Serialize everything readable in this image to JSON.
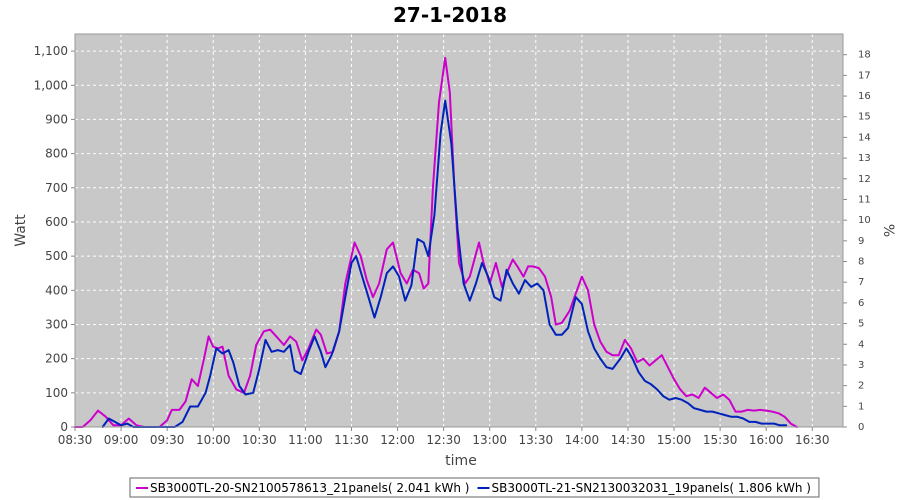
{
  "chart_data": {
    "type": "line",
    "title": "27-1-2018",
    "xlabel": "time",
    "ylabel": "Watt",
    "y2label": "%",
    "ylim": [
      0,
      1150
    ],
    "y2lim": [
      0,
      19
    ],
    "grid": true,
    "legend_position": "bottom",
    "colors": {
      "plot_background": "#c8c8c8",
      "grid": "#ffffff"
    },
    "x_ticks": [
      "08:30",
      "09:00",
      "09:30",
      "10:00",
      "10:30",
      "11:00",
      "11:30",
      "12:00",
      "12:30",
      "13:00",
      "13:30",
      "14:00",
      "14:30",
      "15:00",
      "15:30",
      "16:00",
      "16:30"
    ],
    "y_ticks": [
      "0",
      "100",
      "200",
      "300",
      "400",
      "500",
      "600",
      "700",
      "800",
      "900",
      "1,000",
      "1,100"
    ],
    "y2_ticks": [
      "0",
      "1",
      "2",
      "3",
      "4",
      "5",
      "6",
      "7",
      "8",
      "9",
      "10",
      "11",
      "12",
      "13",
      "14",
      "15",
      "16",
      "17",
      "18"
    ],
    "series": [
      {
        "name": "SB3000TL-20-SN2100578613_21panels( 2.041 kWh )",
        "color": "#cc00cc",
        "points": [
          [
            "08:30",
            0
          ],
          [
            "08:35",
            0
          ],
          [
            "08:40",
            20
          ],
          [
            "08:45",
            48
          ],
          [
            "08:50",
            30
          ],
          [
            "08:55",
            5
          ],
          [
            "09:00",
            5
          ],
          [
            "09:05",
            25
          ],
          [
            "09:10",
            5
          ],
          [
            "09:15",
            0
          ],
          [
            "09:20",
            0
          ],
          [
            "09:25",
            0
          ],
          [
            "09:30",
            20
          ],
          [
            "09:33",
            50
          ],
          [
            "09:38",
            50
          ],
          [
            "09:42",
            75
          ],
          [
            "09:46",
            140
          ],
          [
            "09:50",
            120
          ],
          [
            "09:54",
            200
          ],
          [
            "09:57",
            265
          ],
          [
            "10:00",
            235
          ],
          [
            "10:03",
            230
          ],
          [
            "10:06",
            235
          ],
          [
            "10:10",
            150
          ],
          [
            "10:15",
            110
          ],
          [
            "10:20",
            100
          ],
          [
            "10:24",
            150
          ],
          [
            "10:28",
            240
          ],
          [
            "10:33",
            280
          ],
          [
            "10:37",
            285
          ],
          [
            "10:42",
            260
          ],
          [
            "10:46",
            240
          ],
          [
            "10:50",
            265
          ],
          [
            "10:54",
            250
          ],
          [
            "10:58",
            195
          ],
          [
            "11:02",
            230
          ],
          [
            "11:07",
            285
          ],
          [
            "11:10",
            270
          ],
          [
            "11:14",
            215
          ],
          [
            "11:18",
            220
          ],
          [
            "11:22",
            280
          ],
          [
            "11:26",
            420
          ],
          [
            "11:32",
            540
          ],
          [
            "11:36",
            500
          ],
          [
            "11:40",
            430
          ],
          [
            "11:44",
            380
          ],
          [
            "11:48",
            420
          ],
          [
            "11:53",
            520
          ],
          [
            "11:57",
            540
          ],
          [
            "12:02",
            450
          ],
          [
            "12:06",
            420
          ],
          [
            "12:10",
            460
          ],
          [
            "12:14",
            450
          ],
          [
            "12:17",
            405
          ],
          [
            "12:20",
            420
          ],
          [
            "12:23",
            700
          ],
          [
            "12:27",
            950
          ],
          [
            "12:31",
            1080
          ],
          [
            "12:34",
            980
          ],
          [
            "12:37",
            700
          ],
          [
            "12:40",
            480
          ],
          [
            "12:44",
            420
          ],
          [
            "12:47",
            440
          ],
          [
            "12:50",
            490
          ],
          [
            "12:53",
            540
          ],
          [
            "12:56",
            480
          ],
          [
            "13:00",
            420
          ],
          [
            "13:04",
            480
          ],
          [
            "13:08",
            410
          ],
          [
            "13:12",
            460
          ],
          [
            "13:15",
            490
          ],
          [
            "13:18",
            470
          ],
          [
            "13:22",
            440
          ],
          [
            "13:25",
            470
          ],
          [
            "13:28",
            470
          ],
          [
            "13:32",
            465
          ],
          [
            "13:36",
            440
          ],
          [
            "13:40",
            380
          ],
          [
            "13:43",
            300
          ],
          [
            "13:47",
            305
          ],
          [
            "13:52",
            340
          ],
          [
            "13:56",
            390
          ],
          [
            "14:00",
            440
          ],
          [
            "14:04",
            400
          ],
          [
            "14:08",
            300
          ],
          [
            "14:12",
            250
          ],
          [
            "14:16",
            220
          ],
          [
            "14:20",
            210
          ],
          [
            "14:24",
            210
          ],
          [
            "14:28",
            255
          ],
          [
            "14:32",
            230
          ],
          [
            "14:36",
            190
          ],
          [
            "14:40",
            200
          ],
          [
            "14:44",
            180
          ],
          [
            "14:48",
            195
          ],
          [
            "14:52",
            210
          ],
          [
            "14:56",
            175
          ],
          [
            "15:00",
            140
          ],
          [
            "15:04",
            110
          ],
          [
            "15:08",
            90
          ],
          [
            "15:12",
            95
          ],
          [
            "15:16",
            85
          ],
          [
            "15:20",
            115
          ],
          [
            "15:24",
            100
          ],
          [
            "15:28",
            85
          ],
          [
            "15:32",
            95
          ],
          [
            "15:36",
            80
          ],
          [
            "15:40",
            45
          ],
          [
            "15:44",
            45
          ],
          [
            "15:48",
            50
          ],
          [
            "15:52",
            48
          ],
          [
            "15:56",
            50
          ],
          [
            "16:00",
            48
          ],
          [
            "16:04",
            45
          ],
          [
            "16:08",
            40
          ],
          [
            "16:12",
            30
          ],
          [
            "16:16",
            10
          ],
          [
            "16:20",
            0
          ]
        ]
      },
      {
        "name": "SB3000TL-21-SN2130032031_19panels( 1.806 kWh )",
        "color": "#0022bb",
        "points": [
          [
            "08:48",
            0
          ],
          [
            "08:52",
            25
          ],
          [
            "08:56",
            15
          ],
          [
            "09:00",
            5
          ],
          [
            "09:04",
            10
          ],
          [
            "09:08",
            0
          ],
          [
            "09:15",
            0
          ],
          [
            "09:30",
            0
          ],
          [
            "09:35",
            0
          ],
          [
            "09:40",
            15
          ],
          [
            "09:45",
            60
          ],
          [
            "09:50",
            60
          ],
          [
            "09:55",
            100
          ],
          [
            "09:58",
            150
          ],
          [
            "10:02",
            230
          ],
          [
            "10:06",
            215
          ],
          [
            "10:10",
            225
          ],
          [
            "10:13",
            190
          ],
          [
            "10:17",
            120
          ],
          [
            "10:21",
            95
          ],
          [
            "10:26",
            100
          ],
          [
            "10:30",
            170
          ],
          [
            "10:34",
            255
          ],
          [
            "10:38",
            220
          ],
          [
            "10:42",
            225
          ],
          [
            "10:46",
            220
          ],
          [
            "10:50",
            240
          ],
          [
            "10:53",
            165
          ],
          [
            "10:57",
            155
          ],
          [
            "11:02",
            220
          ],
          [
            "11:06",
            265
          ],
          [
            "11:10",
            220
          ],
          [
            "11:13",
            175
          ],
          [
            "11:17",
            210
          ],
          [
            "11:22",
            280
          ],
          [
            "11:26",
            380
          ],
          [
            "11:30",
            480
          ],
          [
            "11:33",
            500
          ],
          [
            "11:37",
            440
          ],
          [
            "11:41",
            380
          ],
          [
            "11:45",
            320
          ],
          [
            "11:49",
            380
          ],
          [
            "11:53",
            450
          ],
          [
            "11:57",
            470
          ],
          [
            "12:01",
            440
          ],
          [
            "12:05",
            370
          ],
          [
            "12:09",
            415
          ],
          [
            "12:13",
            550
          ],
          [
            "12:17",
            540
          ],
          [
            "12:20",
            500
          ],
          [
            "12:24",
            620
          ],
          [
            "12:28",
            860
          ],
          [
            "12:31",
            955
          ],
          [
            "12:35",
            830
          ],
          [
            "12:39",
            580
          ],
          [
            "12:43",
            420
          ],
          [
            "12:47",
            370
          ],
          [
            "12:51",
            420
          ],
          [
            "12:55",
            480
          ],
          [
            "12:59",
            440
          ],
          [
            "13:03",
            380
          ],
          [
            "13:07",
            370
          ],
          [
            "13:11",
            460
          ],
          [
            "13:15",
            420
          ],
          [
            "13:19",
            390
          ],
          [
            "13:23",
            430
          ],
          [
            "13:27",
            410
          ],
          [
            "13:31",
            420
          ],
          [
            "13:35",
            400
          ],
          [
            "13:39",
            300
          ],
          [
            "13:43",
            270
          ],
          [
            "13:47",
            270
          ],
          [
            "13:51",
            290
          ],
          [
            "13:56",
            380
          ],
          [
            "14:00",
            360
          ],
          [
            "14:04",
            280
          ],
          [
            "14:08",
            230
          ],
          [
            "14:12",
            200
          ],
          [
            "14:16",
            175
          ],
          [
            "14:20",
            170
          ],
          [
            "14:25",
            200
          ],
          [
            "14:29",
            230
          ],
          [
            "14:33",
            200
          ],
          [
            "14:37",
            160
          ],
          [
            "14:41",
            135
          ],
          [
            "14:45",
            125
          ],
          [
            "14:49",
            110
          ],
          [
            "14:53",
            90
          ],
          [
            "14:57",
            80
          ],
          [
            "15:01",
            85
          ],
          [
            "15:05",
            80
          ],
          [
            "15:09",
            70
          ],
          [
            "15:13",
            55
          ],
          [
            "15:17",
            50
          ],
          [
            "15:21",
            45
          ],
          [
            "15:25",
            45
          ],
          [
            "15:29",
            40
          ],
          [
            "15:33",
            35
          ],
          [
            "15:37",
            30
          ],
          [
            "15:41",
            30
          ],
          [
            "15:45",
            25
          ],
          [
            "15:49",
            15
          ],
          [
            "15:53",
            15
          ],
          [
            "15:57",
            10
          ],
          [
            "16:01",
            10
          ],
          [
            "16:05",
            10
          ],
          [
            "16:09",
            5
          ],
          [
            "16:13",
            5
          ]
        ]
      }
    ]
  }
}
